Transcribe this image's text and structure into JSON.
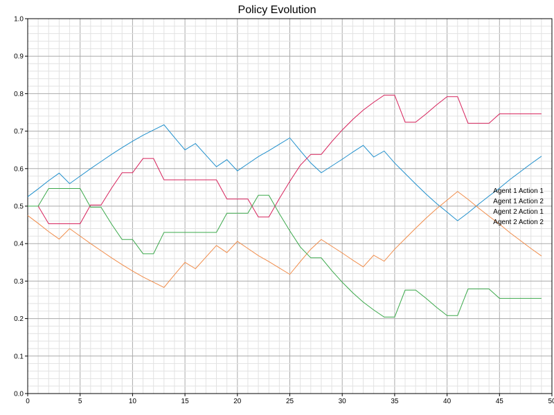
{
  "chart_data": {
    "type": "line",
    "title": "Policy Evolution",
    "xlabel": "",
    "ylabel": "",
    "xlim": [
      0,
      50
    ],
    "ylim": [
      0,
      1
    ],
    "grid": true,
    "x_ticks": [
      "0",
      "5",
      "10",
      "15",
      "20",
      "25",
      "30",
      "35",
      "40",
      "45",
      "50"
    ],
    "y_ticks": [
      "0.0",
      "0.1",
      "0.2",
      "0.3",
      "0.4",
      "0.5",
      "0.6",
      "0.7",
      "0.8",
      "0.9",
      "1.0"
    ],
    "legend_position": "right",
    "x": [
      0,
      1,
      2,
      3,
      4,
      5,
      6,
      7,
      8,
      9,
      10,
      11,
      12,
      13,
      14,
      15,
      16,
      17,
      18,
      19,
      20,
      21,
      22,
      23,
      24,
      25,
      26,
      27,
      28,
      29,
      30,
      31,
      32,
      33,
      34,
      35,
      36,
      37,
      38,
      39,
      40,
      41,
      42,
      43,
      44,
      45,
      46,
      47,
      48,
      49
    ],
    "series": [
      {
        "name": "Agent 1 Action 1",
        "color": "#1f8fcc",
        "values": [
          0.525,
          0.546,
          0.568,
          0.588,
          0.56,
          0.58,
          0.6,
          0.619,
          0.638,
          0.656,
          0.673,
          0.689,
          0.703,
          0.717,
          0.683,
          0.65,
          0.667,
          0.636,
          0.605,
          0.624,
          0.594,
          0.613,
          0.632,
          0.648,
          0.665,
          0.682,
          0.648,
          0.615,
          0.589,
          0.607,
          0.625,
          0.644,
          0.662,
          0.631,
          0.647,
          0.615,
          0.587,
          0.559,
          0.532,
          0.507,
          0.484,
          0.461,
          0.482,
          0.505,
          0.527,
          0.548,
          0.571,
          0.592,
          0.613,
          0.633
        ]
      },
      {
        "name": "Agent 1 Action 2",
        "color": "#f08c4a",
        "values": [
          0.475,
          0.454,
          0.432,
          0.412,
          0.44,
          0.42,
          0.4,
          0.381,
          0.362,
          0.344,
          0.327,
          0.311,
          0.297,
          0.283,
          0.317,
          0.35,
          0.333,
          0.364,
          0.395,
          0.376,
          0.406,
          0.387,
          0.368,
          0.352,
          0.335,
          0.318,
          0.352,
          0.385,
          0.411,
          0.393,
          0.375,
          0.356,
          0.338,
          0.369,
          0.353,
          0.385,
          0.413,
          0.441,
          0.468,
          0.493,
          0.516,
          0.539,
          0.518,
          0.495,
          0.473,
          0.452,
          0.429,
          0.408,
          0.387,
          0.367
        ]
      },
      {
        "name": "Agent 2 Action 1",
        "color": "#d6205a",
        "values": [
          0.5,
          0.5,
          0.453,
          0.453,
          0.453,
          0.453,
          0.503,
          0.503,
          0.548,
          0.589,
          0.589,
          0.627,
          0.627,
          0.57,
          0.57,
          0.57,
          0.57,
          0.57,
          0.57,
          0.519,
          0.519,
          0.519,
          0.471,
          0.471,
          0.52,
          0.566,
          0.609,
          0.638,
          0.638,
          0.672,
          0.703,
          0.731,
          0.756,
          0.777,
          0.796,
          0.796,
          0.724,
          0.724,
          0.746,
          0.77,
          0.792,
          0.792,
          0.721,
          0.721,
          0.721,
          0.746,
          0.746,
          0.746,
          0.746,
          0.746
        ]
      },
      {
        "name": "Agent 2 Action 2",
        "color": "#3aa84a",
        "values": [
          0.5,
          0.5,
          0.547,
          0.547,
          0.547,
          0.547,
          0.497,
          0.497,
          0.452,
          0.411,
          0.411,
          0.373,
          0.373,
          0.43,
          0.43,
          0.43,
          0.43,
          0.43,
          0.43,
          0.481,
          0.481,
          0.481,
          0.529,
          0.529,
          0.48,
          0.434,
          0.391,
          0.362,
          0.362,
          0.328,
          0.297,
          0.269,
          0.244,
          0.223,
          0.204,
          0.204,
          0.276,
          0.276,
          0.254,
          0.23,
          0.208,
          0.208,
          0.279,
          0.279,
          0.279,
          0.254,
          0.254,
          0.254,
          0.254,
          0.254
        ]
      }
    ]
  }
}
